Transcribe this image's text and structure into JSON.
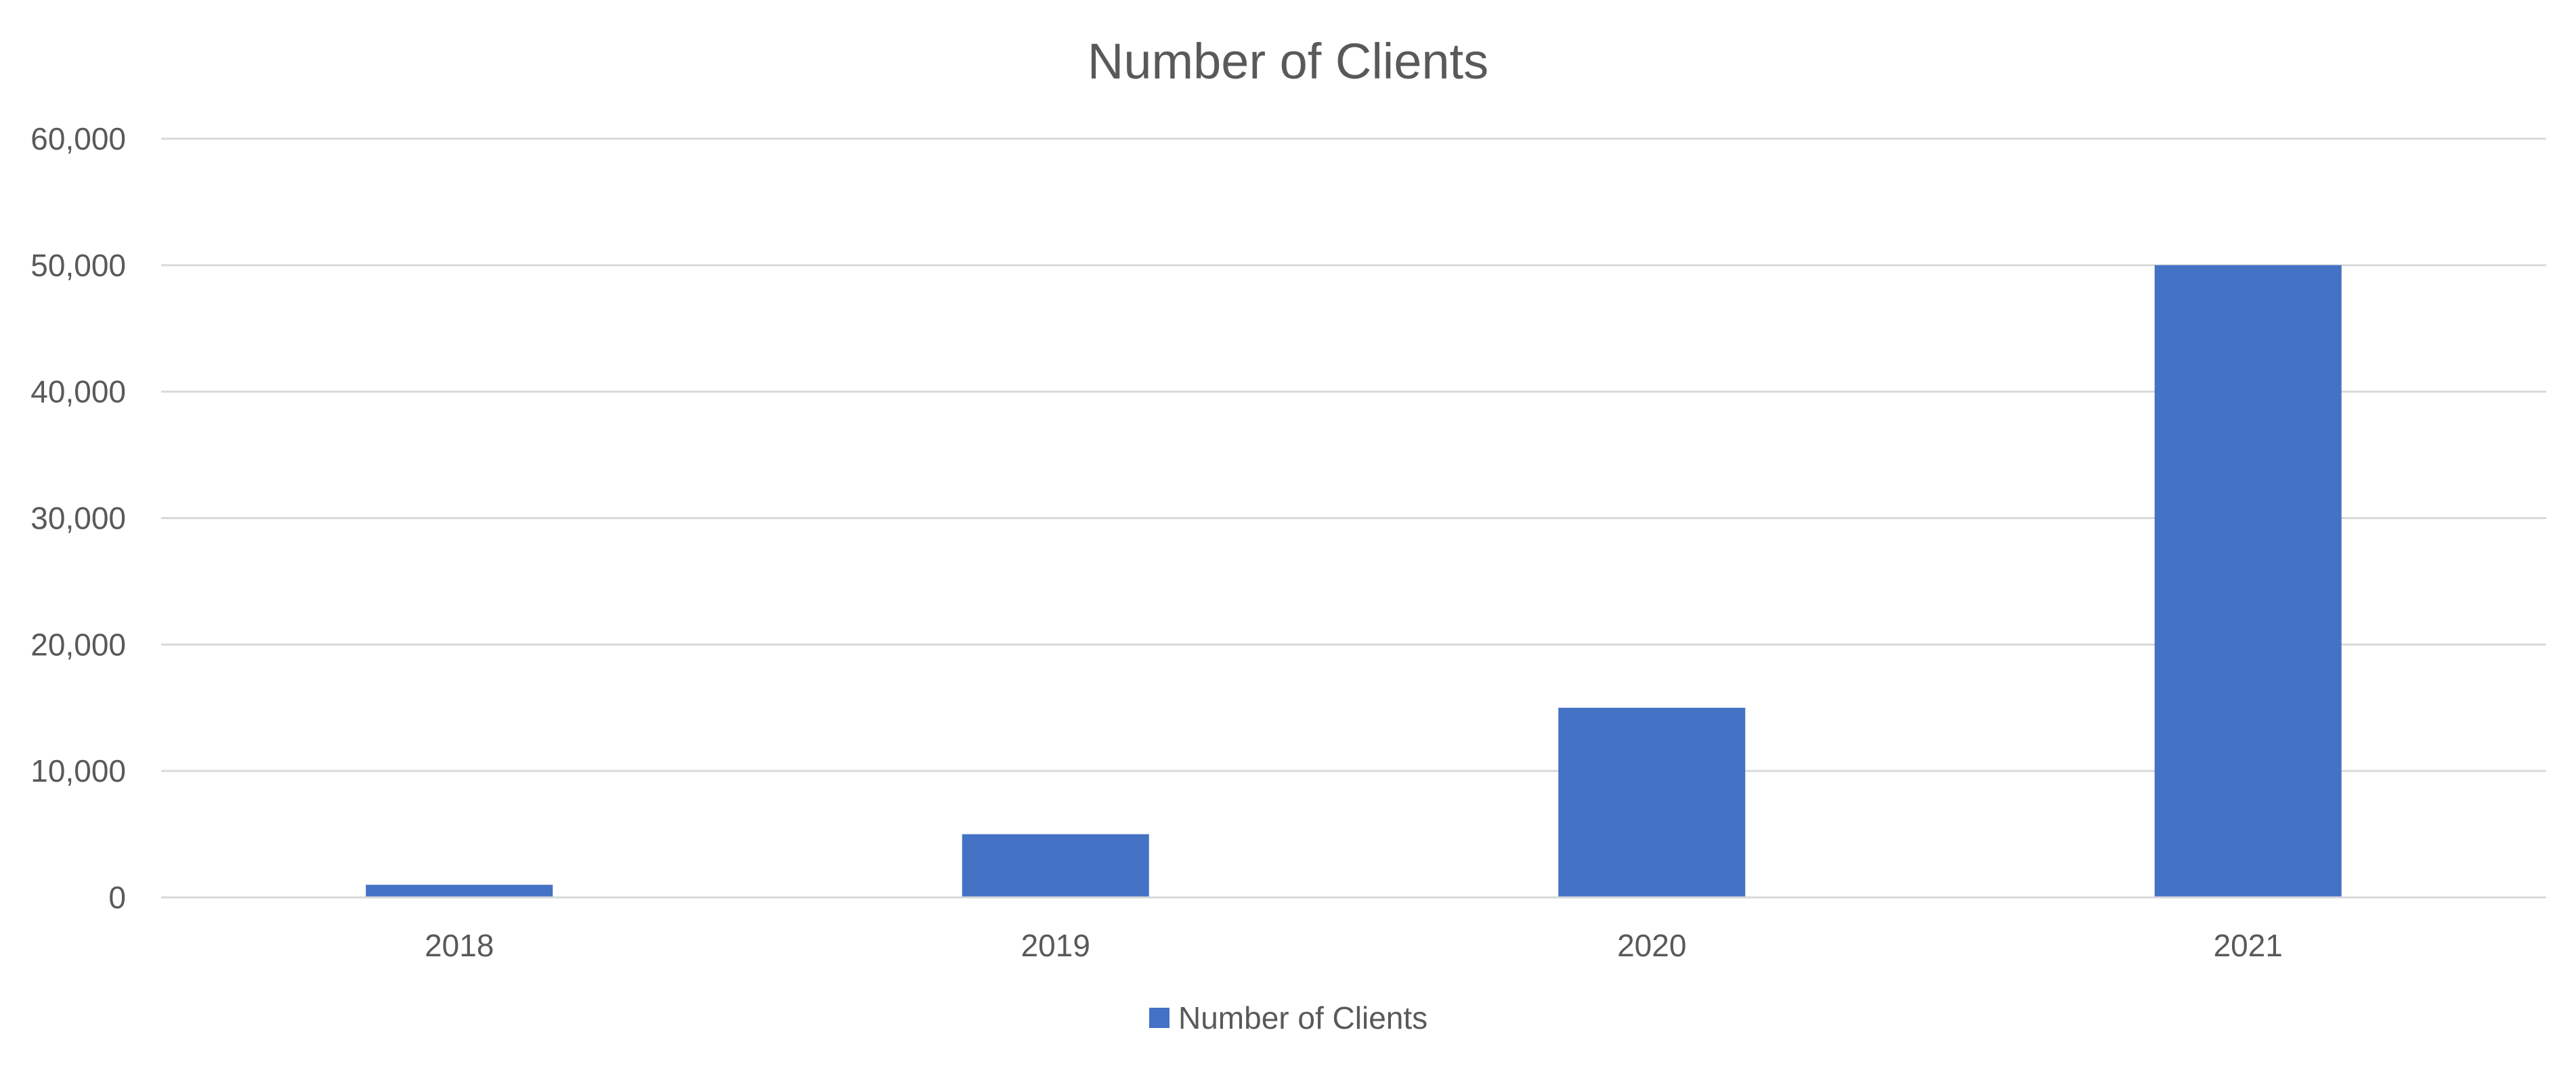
{
  "chart_data": {
    "type": "bar",
    "title": "Number of Clients",
    "xlabel": "",
    "ylabel": "",
    "categories": [
      "2018",
      "2019",
      "2020",
      "2021"
    ],
    "series": [
      {
        "name": "Number of Clients",
        "color": "#4472c4",
        "values": [
          1000,
          5000,
          15000,
          50000
        ]
      }
    ],
    "ylim": [
      0,
      60000
    ],
    "yticks": [
      0,
      10000,
      20000,
      30000,
      40000,
      50000,
      60000
    ],
    "ytick_labels": [
      "0",
      "10,000",
      "20,000",
      "30,000",
      "40,000",
      "50,000",
      "60,000"
    ],
    "grid": true,
    "legend": "bottom"
  }
}
